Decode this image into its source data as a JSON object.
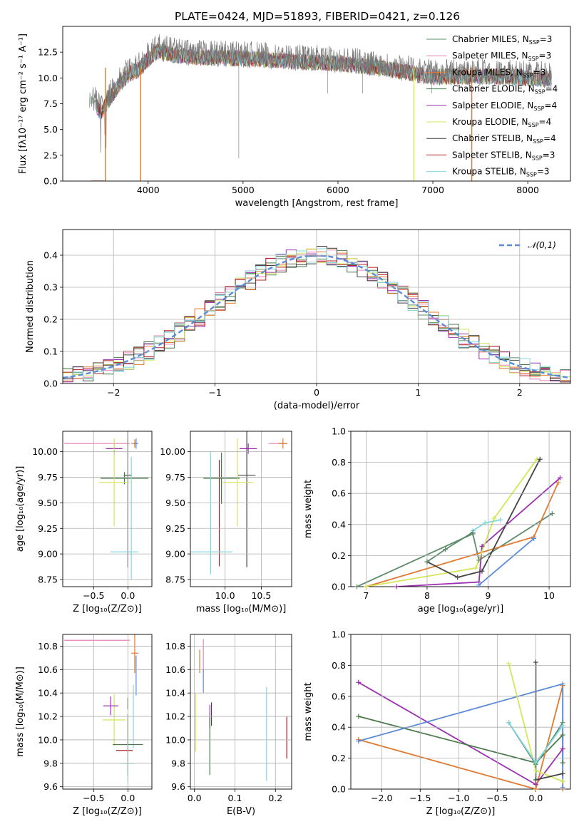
{
  "figure": {
    "title": "PLATE=0424, MJD=51893, FIBERID=0421, z=0.126"
  },
  "legend_entries": [
    {
      "pre": "Chabrier MILES, N",
      "sub": "SSP",
      "post": "=3",
      "color": "#5e8c6a"
    },
    {
      "pre": "Salpeter MILES, N",
      "sub": "SSP",
      "post": "=3",
      "color": "#ea7fb8"
    },
    {
      "pre": "Kroupa MILES, N",
      "sub": "SSP",
      "post": "=3",
      "color": "#e07a30"
    },
    {
      "pre": "Chabrier ELODIE, N",
      "sub": "SSP",
      "post": "=4",
      "color": "#4a7a4a"
    },
    {
      "pre": "Salpeter ELODIE, N",
      "sub": "SSP",
      "post": "=4",
      "color": "#9b30b0"
    },
    {
      "pre": "Kroupa ELODIE, N",
      "sub": "SSP",
      "post": "=4",
      "color": "#d4e65a"
    },
    {
      "pre": "Chabrier STELIB, N",
      "sub": "SSP",
      "post": "=4",
      "color": "#444444"
    },
    {
      "pre": "Salpeter STELIB, N",
      "sub": "SSP",
      "post": "=3",
      "color": "#b02020"
    },
    {
      "pre": "Kroupa STELIB, N",
      "sub": "SSP",
      "post": "=3",
      "color": "#80d8e0"
    }
  ],
  "chart_data": [
    {
      "id": "spectrum",
      "type": "line",
      "title": "PLATE=0424, MJD=51893, FIBERID=0421, z=0.126",
      "xlabel": "wavelength [Angstrom, rest frame]",
      "ylabel": "Flux [fλ10⁻¹⁷ erg cm⁻² s⁻¹ A⁻¹]",
      "xlim": [
        3100,
        8450
      ],
      "ylim": [
        0,
        15
      ],
      "xticks": [
        "4000",
        "5000",
        "6000",
        "7000",
        "8000"
      ],
      "xtick_values": [
        4000,
        5000,
        6000,
        7000,
        8000
      ],
      "yticks": [
        "0.0",
        "2.5",
        "5.0",
        "7.5",
        "10.0",
        "12.5"
      ],
      "ytick_values": [
        0,
        2.5,
        5,
        7.5,
        10,
        12.5
      ],
      "grid": false,
      "legend": "top-right",
      "data_envelope": {
        "x": [
          3400,
          3450,
          3500,
          3600,
          3700,
          3800,
          3900,
          4000,
          4100,
          4300,
          4500,
          5000,
          5500,
          6000,
          6500,
          7000,
          7500,
          8000,
          8250
        ],
        "y": [
          8.3,
          7.8,
          7.0,
          8.5,
          9.8,
          10.8,
          11.2,
          12.2,
          13.0,
          12.6,
          12.4,
          12.3,
          12.0,
          11.8,
          11.3,
          10.5,
          10.6,
          10.4,
          10.3
        ]
      },
      "model_series": [
        {
          "x": [
            3450,
            3500,
            3600,
            3700,
            3800,
            3900,
            4000,
            4100,
            4300,
            4500,
            5000,
            5500,
            6000,
            6500,
            7000,
            7500,
            8000,
            8250
          ],
          "y": [
            8.2,
            7.8,
            8.8,
            10.0,
            10.8,
            11.3,
            12.0,
            12.9,
            12.5,
            12.2,
            12.0,
            11.7,
            11.5,
            11.0,
            10.3,
            10.4,
            10.2,
            10.1
          ]
        }
      ],
      "dropouts": [
        {
          "x": 3550,
          "color": "#e07a30"
        },
        {
          "x": 3920,
          "color": "#e07a30"
        },
        {
          "x": 6800,
          "color": "#d4e65a"
        },
        {
          "x": 7410,
          "color": "#e07a30"
        }
      ]
    },
    {
      "id": "residuals",
      "type": "bar",
      "xlabel": "(data-model)/error",
      "ylabel": "Normed distribution",
      "xlim": [
        -2.5,
        2.5
      ],
      "ylim": [
        0,
        0.48
      ],
      "xticks": [
        "−2",
        "−1",
        "0",
        "1",
        "2"
      ],
      "xtick_values": [
        -2,
        -1,
        0,
        1,
        2
      ],
      "yticks": [
        "0.0",
        "0.1",
        "0.2",
        "0.3",
        "0.4"
      ],
      "ytick_values": [
        0,
        0.1,
        0.2,
        0.3,
        0.4
      ],
      "grid": true,
      "legend": "top-right",
      "reference_curve": {
        "name": "𝒩(0,1)",
        "mean": 0,
        "sigma": 1,
        "color": "#5b8bd6"
      },
      "bins": {
        "start": -2.5,
        "step": 0.1
      }
    },
    {
      "id": "age-vs-Z",
      "type": "scatter",
      "xlabel": "Z [log₁₀(Z/Z⊙)]",
      "ylabel": "age  [log₁₀(age/yr)]",
      "xlim": [
        -0.95,
        0.35
      ],
      "ylim": [
        8.68,
        10.2
      ],
      "xticks": [
        "−0.5",
        "0.0"
      ],
      "xtick_values": [
        -0.5,
        0.0
      ],
      "yticks": [
        "8.75",
        "9.00",
        "9.25",
        "9.50",
        "9.75",
        "10.00"
      ],
      "ytick_values": [
        8.75,
        9.0,
        9.25,
        9.5,
        9.75,
        10.0
      ],
      "grid": true,
      "points": [
        {
          "color": "#ea7fb8",
          "x": -0.45,
          "xerr": 0.48,
          "y": 10.08,
          "yerr": 0.0
        },
        {
          "color": "#e07a30",
          "x": 0.1,
          "xerr": 0.05,
          "y": 10.08,
          "yerr": 0.04
        },
        {
          "color": "#9b30b0",
          "x": -0.2,
          "xerr": 0.12,
          "y": 10.03,
          "yerr": 0.06
        },
        {
          "color": "#5b8bd6",
          "x": 0.12,
          "xerr": 0.03,
          "y": 10.08,
          "yerr": 0.05
        },
        {
          "color": "#444444",
          "x": 0.0,
          "xerr": 0.06,
          "y": 9.77,
          "yerr": 0.9
        },
        {
          "color": "#4a7a4a",
          "x": -0.05,
          "xerr": 0.35,
          "y": 9.74,
          "yerr": 0.06
        },
        {
          "color": "#d4e65a",
          "x": -0.2,
          "xerr": 0.22,
          "y": 9.7,
          "yerr": 0.43
        },
        {
          "color": "#80d8e0",
          "x": -0.05,
          "xerr": 0.2,
          "y": 9.02,
          "yerr": 0.0
        },
        {
          "color": "#80d8e0",
          "x": 0.05,
          "xerr": 0.0,
          "y": 9.35,
          "yerr": 0.6
        }
      ]
    },
    {
      "id": "age-vs-mass",
      "type": "scatter",
      "xlabel": "mass [log₁₀(M/M⊙)]",
      "ylabel": "",
      "xlim": [
        9.52,
        10.92
      ],
      "ylim": [
        8.68,
        10.2
      ],
      "xticks": [
        "10.0",
        "10.5"
      ],
      "xtick_values": [
        10.0,
        10.5
      ],
      "yticks": [
        "8.75",
        "9.00",
        "9.25",
        "9.50",
        "9.75",
        "10.00"
      ],
      "ytick_values": [
        8.75,
        9.0,
        9.25,
        9.5,
        9.75,
        10.0
      ],
      "grid": true,
      "points": [
        {
          "color": "#ea7fb8",
          "x": 10.73,
          "xerr": 0.13,
          "y": 10.08,
          "yerr": 0.0
        },
        {
          "color": "#e07a30",
          "x": 10.8,
          "xerr": 0.06,
          "y": 10.08,
          "yerr": 0.05
        },
        {
          "color": "#9b30b0",
          "x": 10.32,
          "xerr": 0.12,
          "y": 10.03,
          "yerr": 0.05
        },
        {
          "color": "#444444",
          "x": 10.3,
          "xerr": 0.12,
          "y": 9.77,
          "yerr": 0.9
        },
        {
          "color": "#4a7a4a",
          "x": 9.95,
          "xerr": 0.25,
          "y": 9.74,
          "yerr": 0.25
        },
        {
          "color": "#d4e65a",
          "x": 10.17,
          "xerr": 0.22,
          "y": 9.7,
          "yerr": 0.43
        },
        {
          "color": "#b02020",
          "x": 9.92,
          "xerr": 0.0,
          "y": 9.4,
          "yerr": 0.52
        },
        {
          "color": "#80d8e0",
          "x": 9.8,
          "xerr": 0.3,
          "y": 9.02,
          "yerr": 0.0
        },
        {
          "color": "#80d8e0",
          "x": 9.8,
          "xerr": 0.0,
          "y": 9.4,
          "yerr": 0.6
        }
      ]
    },
    {
      "id": "weight-vs-age",
      "type": "line",
      "xlabel": "age  [log₁₀(age/yr)]",
      "ylabel": "mass weight",
      "xlim": [
        6.75,
        10.35
      ],
      "ylim": [
        0,
        1
      ],
      "xticks": [
        "7",
        "8",
        "9",
        "10"
      ],
      "xtick_values": [
        7,
        8,
        9,
        10
      ],
      "yticks": [
        "0.0",
        "0.2",
        "0.4",
        "0.6",
        "0.8",
        "1.0"
      ],
      "ytick_values": [
        0,
        0.2,
        0.4,
        0.6,
        0.8,
        1.0
      ],
      "grid": true,
      "series": [
        {
          "color": "#5e8c6a",
          "x": [
            6.85,
            8.75,
            8.85,
            10.05
          ],
          "y": [
            0.0,
            0.34,
            0.17,
            0.47
          ]
        },
        {
          "color": "#e07a30",
          "x": [
            7.0,
            9.75,
            10.15
          ],
          "y": [
            0.0,
            0.32,
            0.67
          ]
        },
        {
          "color": "#9b30b0",
          "x": [
            7.5,
            8.85,
            8.9,
            10.18
          ],
          "y": [
            0.0,
            0.03,
            0.26,
            0.7
          ]
        },
        {
          "color": "#d4e65a",
          "x": [
            7.0,
            8.8,
            9.1,
            9.8
          ],
          "y": [
            0.0,
            0.12,
            0.44,
            0.82
          ]
        },
        {
          "color": "#444444",
          "x": [
            8.0,
            8.5,
            8.9,
            9.85
          ],
          "y": [
            0.16,
            0.06,
            0.1,
            0.82
          ]
        },
        {
          "color": "#5b8bd6",
          "x": [
            8.85,
            9.75
          ],
          "y": [
            0.01,
            0.31
          ]
        },
        {
          "color": "#80d8e0",
          "x": [
            8.75,
            8.95,
            9.2
          ],
          "y": [
            0.36,
            0.41,
            0.43
          ]
        },
        {
          "color": "#5e8c6a",
          "x": [
            8.0,
            8.3,
            8.75
          ],
          "y": [
            0.16,
            0.24,
            0.35
          ]
        }
      ]
    },
    {
      "id": "mass-vs-Z",
      "type": "scatter",
      "xlabel": "Z [log₁₀(Z/Z⊙)]",
      "ylabel": "mass [log₁₀(M/M⊙)]",
      "xlim": [
        -0.95,
        0.35
      ],
      "ylim": [
        9.58,
        10.9
      ],
      "xticks": [
        "−0.5",
        "0.0"
      ],
      "xtick_values": [
        -0.5,
        0.0
      ],
      "yticks": [
        "9.6",
        "9.8",
        "10.0",
        "10.2",
        "10.4",
        "10.6",
        "10.8"
      ],
      "ytick_values": [
        9.6,
        9.8,
        10.0,
        10.2,
        10.4,
        10.6,
        10.8
      ],
      "grid": true,
      "points": [
        {
          "color": "#ea7fb8",
          "x": -0.45,
          "xerr": 0.48,
          "y": 10.85,
          "yerr": 0.0
        },
        {
          "color": "#e07a30",
          "x": 0.1,
          "xerr": 0.05,
          "y": 10.74,
          "yerr": 0.17
        },
        {
          "color": "#5b8bd6",
          "x": 0.12,
          "xerr": 0.0,
          "y": 10.55,
          "yerr": 0.17
        },
        {
          "color": "#80d8e0",
          "x": 0.08,
          "xerr": 0.0,
          "y": 10.2,
          "yerr": 0.27
        },
        {
          "color": "#d4e65a",
          "x": -0.2,
          "xerr": 0.17,
          "y": 10.17,
          "yerr": 0.22
        },
        {
          "color": "#9b30b0",
          "x": -0.25,
          "xerr": 0.11,
          "y": 10.29,
          "yerr": 0.08
        },
        {
          "color": "#444444",
          "x": 0.0,
          "xerr": 0.0,
          "y": 10.31,
          "yerr": 0.05
        },
        {
          "color": "#4a7a4a",
          "x": 0.0,
          "xerr": 0.22,
          "y": 9.96,
          "yerr": 0.26
        },
        {
          "color": "#b02020",
          "x": -0.05,
          "xerr": 0.12,
          "y": 9.91,
          "yerr": 0.0
        },
        {
          "color": "#80d8e0",
          "x": 0.0,
          "xerr": 0.1,
          "y": 9.8,
          "yerr": 0.17
        }
      ]
    },
    {
      "id": "mass-vs-EBV",
      "type": "scatter",
      "xlabel": "E(B-V)",
      "ylabel": "",
      "xlim": [
        -0.01,
        0.24
      ],
      "ylim": [
        9.58,
        10.9
      ],
      "xticks": [
        "0.0",
        "0.1",
        "0.2"
      ],
      "xtick_values": [
        0.0,
        0.1,
        0.2
      ],
      "yticks": [
        "9.6",
        "9.8",
        "10.0",
        "10.2",
        "10.4",
        "10.6",
        "10.8"
      ],
      "ytick_values": [
        9.6,
        9.8,
        10.0,
        10.2,
        10.4,
        10.6,
        10.8
      ],
      "grid": true,
      "points": [
        {
          "color": "#e07a30",
          "x": 0.013,
          "xerr": 0.0,
          "y": 10.67,
          "yerr": 0.1
        },
        {
          "color": "#ea7fb8",
          "x": 0.022,
          "xerr": 0.0,
          "y": 10.72,
          "yerr": 0.14
        },
        {
          "color": "#5b8bd6",
          "x": 0.022,
          "xerr": 0.0,
          "y": 10.5,
          "yerr": 0.1
        },
        {
          "color": "#d4e65a",
          "x": 0.003,
          "xerr": 0.0,
          "y": 10.15,
          "yerr": 0.25
        },
        {
          "color": "#9b30b0",
          "x": 0.038,
          "xerr": 0.0,
          "y": 10.2,
          "yerr": 0.1
        },
        {
          "color": "#444444",
          "x": 0.042,
          "xerr": 0.0,
          "y": 10.22,
          "yerr": 0.1
        },
        {
          "color": "#4a7a4a",
          "x": 0.038,
          "xerr": 0.0,
          "y": 9.95,
          "yerr": 0.25
        },
        {
          "color": "#80d8e0",
          "x": 0.178,
          "xerr": 0.0,
          "y": 10.05,
          "yerr": 0.4
        },
        {
          "color": "#b02020",
          "x": 0.228,
          "xerr": 0.0,
          "y": 10.02,
          "yerr": 0.18
        }
      ]
    },
    {
      "id": "weight-vs-Z",
      "type": "line",
      "xlabel": "Z [log₁₀(Z/Z⊙)]",
      "ylabel": "mass weight",
      "xlim": [
        -2.4,
        0.45
      ],
      "ylim": [
        0,
        1
      ],
      "xticks": [
        "−2.0",
        "−1.5",
        "−1.0",
        "−0.5",
        "0.0"
      ],
      "xtick_values": [
        -2.0,
        -1.5,
        -1.0,
        -0.5,
        0.0
      ],
      "yticks": [
        "0.0",
        "0.2",
        "0.4",
        "0.6",
        "0.8",
        "1.0"
      ],
      "ytick_values": [
        0,
        0.2,
        0.4,
        0.6,
        0.8,
        1.0
      ],
      "grid": true,
      "series": [
        {
          "color": "#9b30b0",
          "x": [
            -2.3,
            0.0,
            0.35,
            0.35
          ],
          "y": [
            0.69,
            0.03,
            0.26,
            0.26
          ]
        },
        {
          "color": "#4a7a4a",
          "x": [
            -2.3,
            0.0,
            0.35,
            0.35
          ],
          "y": [
            0.47,
            0.17,
            0.35,
            0.17
          ]
        },
        {
          "color": "#e07a30",
          "x": [
            -2.3,
            0.0,
            0.35,
            0.35
          ],
          "y": [
            0.32,
            0.0,
            0.67,
            0.0
          ]
        },
        {
          "color": "#5b8bd6",
          "x": [
            -2.3,
            0.35,
            0.35
          ],
          "y": [
            0.31,
            0.68,
            0.01
          ]
        },
        {
          "color": "#d4e65a",
          "x": [
            -0.35,
            0.0,
            0.35
          ],
          "y": [
            0.81,
            0.12,
            0.05
          ]
        },
        {
          "color": "#444444",
          "x": [
            0.0,
            0.0,
            0.35
          ],
          "y": [
            0.82,
            0.06,
            0.1
          ]
        },
        {
          "color": "#5e8c6a",
          "x": [
            -0.35,
            0.0,
            0.35
          ],
          "y": [
            0.43,
            0.16,
            0.43
          ]
        },
        {
          "color": "#80d8e0",
          "x": [
            -0.35,
            0.0,
            0.35
          ],
          "y": [
            0.43,
            0.17,
            0.41
          ]
        }
      ]
    }
  ]
}
